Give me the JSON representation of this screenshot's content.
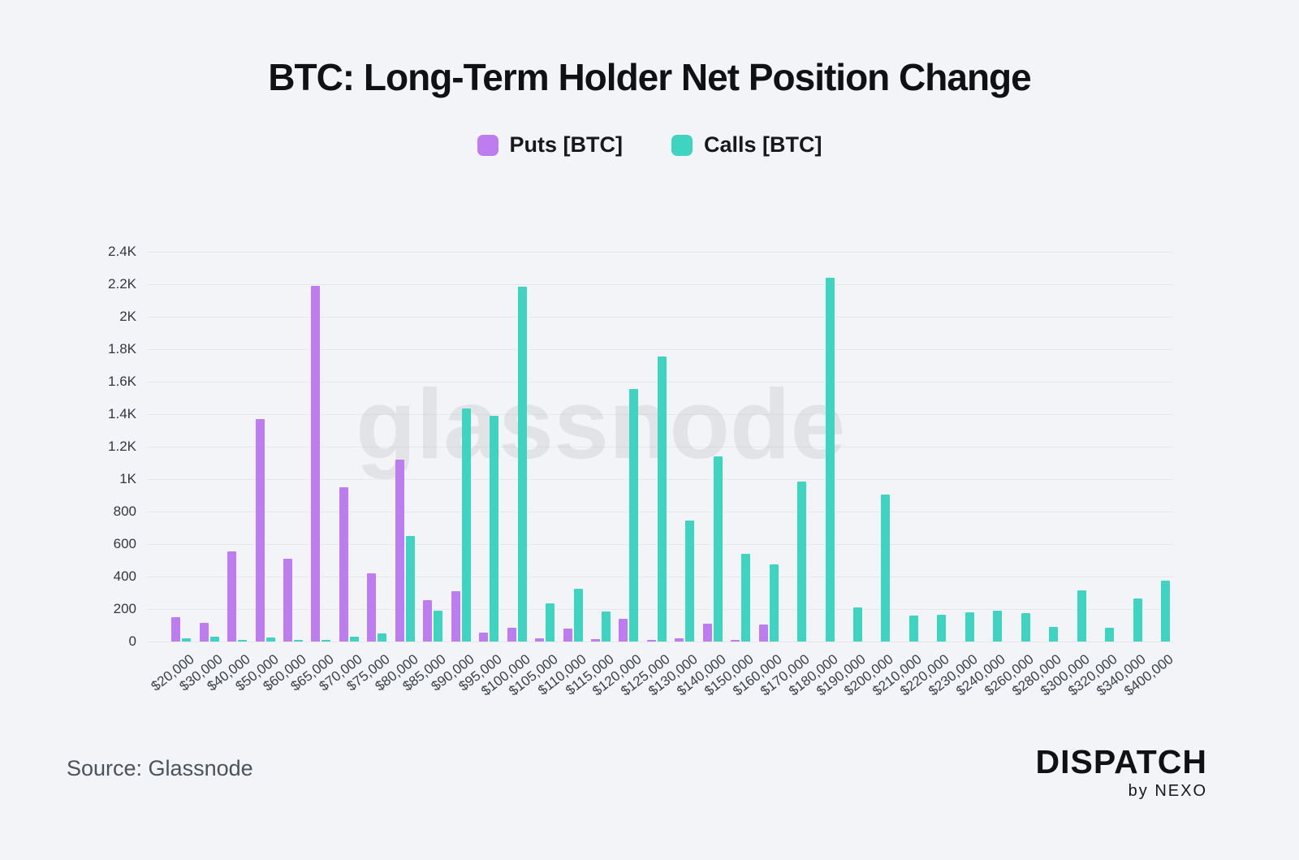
{
  "title": "BTC: Long-Term Holder Net Position Change",
  "watermark": "glassnode",
  "source": "Source: Glassnode",
  "brand": {
    "name": "DISPATCH",
    "sub": "by NEXO"
  },
  "colors": {
    "puts": "#bd7cf0",
    "calls": "#3fd4c2",
    "background": "#f3f4f7",
    "gridline": "#e7e8ec"
  },
  "chart_data": {
    "type": "bar",
    "title": "BTC: Long-Term Holder Net Position Change",
    "categories": [
      "$20,000",
      "$30,000",
      "$40,000",
      "$50,000",
      "$60,000",
      "$65,000",
      "$70,000",
      "$75,000",
      "$80,000",
      "$85,000",
      "$90,000",
      "$95,000",
      "$100,000",
      "$105,000",
      "$110,000",
      "$115,000",
      "$120,000",
      "$125,000",
      "$130,000",
      "$140,000",
      "$150,000",
      "$160,000",
      "$170,000",
      "$180,000",
      "$190,000",
      "$200,000",
      "$210,000",
      "$220,000",
      "$230,000",
      "$240,000",
      "$260,000",
      "$280,000",
      "$300,000",
      "$320,000",
      "$340,000",
      "$400,000"
    ],
    "series": [
      {
        "name": "Puts [BTC]",
        "color": "#bd7cf0",
        "values": [
          150,
          115,
          555,
          1370,
          510,
          2190,
          950,
          420,
          1120,
          255,
          310,
          55,
          85,
          20,
          80,
          15,
          142,
          5,
          18,
          108,
          10,
          103,
          0,
          0,
          0,
          0,
          0,
          0,
          0,
          0,
          0,
          0,
          0,
          0,
          0,
          0
        ]
      },
      {
        "name": "Calls [BTC]",
        "color": "#3fd4c2",
        "values": [
          22,
          28,
          5,
          25,
          12,
          5,
          32,
          50,
          648,
          188,
          1435,
          1390,
          2185,
          237,
          325,
          186,
          1555,
          1755,
          745,
          1140,
          542,
          475,
          985,
          2240,
          212,
          905,
          160,
          165,
          180,
          192,
          175,
          88,
          317,
          87,
          267,
          375
        ]
      }
    ],
    "xlabel": "",
    "ylabel": "",
    "ylim": [
      0,
      2400
    ],
    "ytick_step": 200,
    "ytick_labels": [
      "0",
      "200",
      "400",
      "600",
      "800",
      "1K",
      "1.2K",
      "1.4K",
      "1.6K",
      "1.8K",
      "2K",
      "2.2K",
      "2.4K"
    ],
    "grid": true,
    "legend_position": "top"
  }
}
